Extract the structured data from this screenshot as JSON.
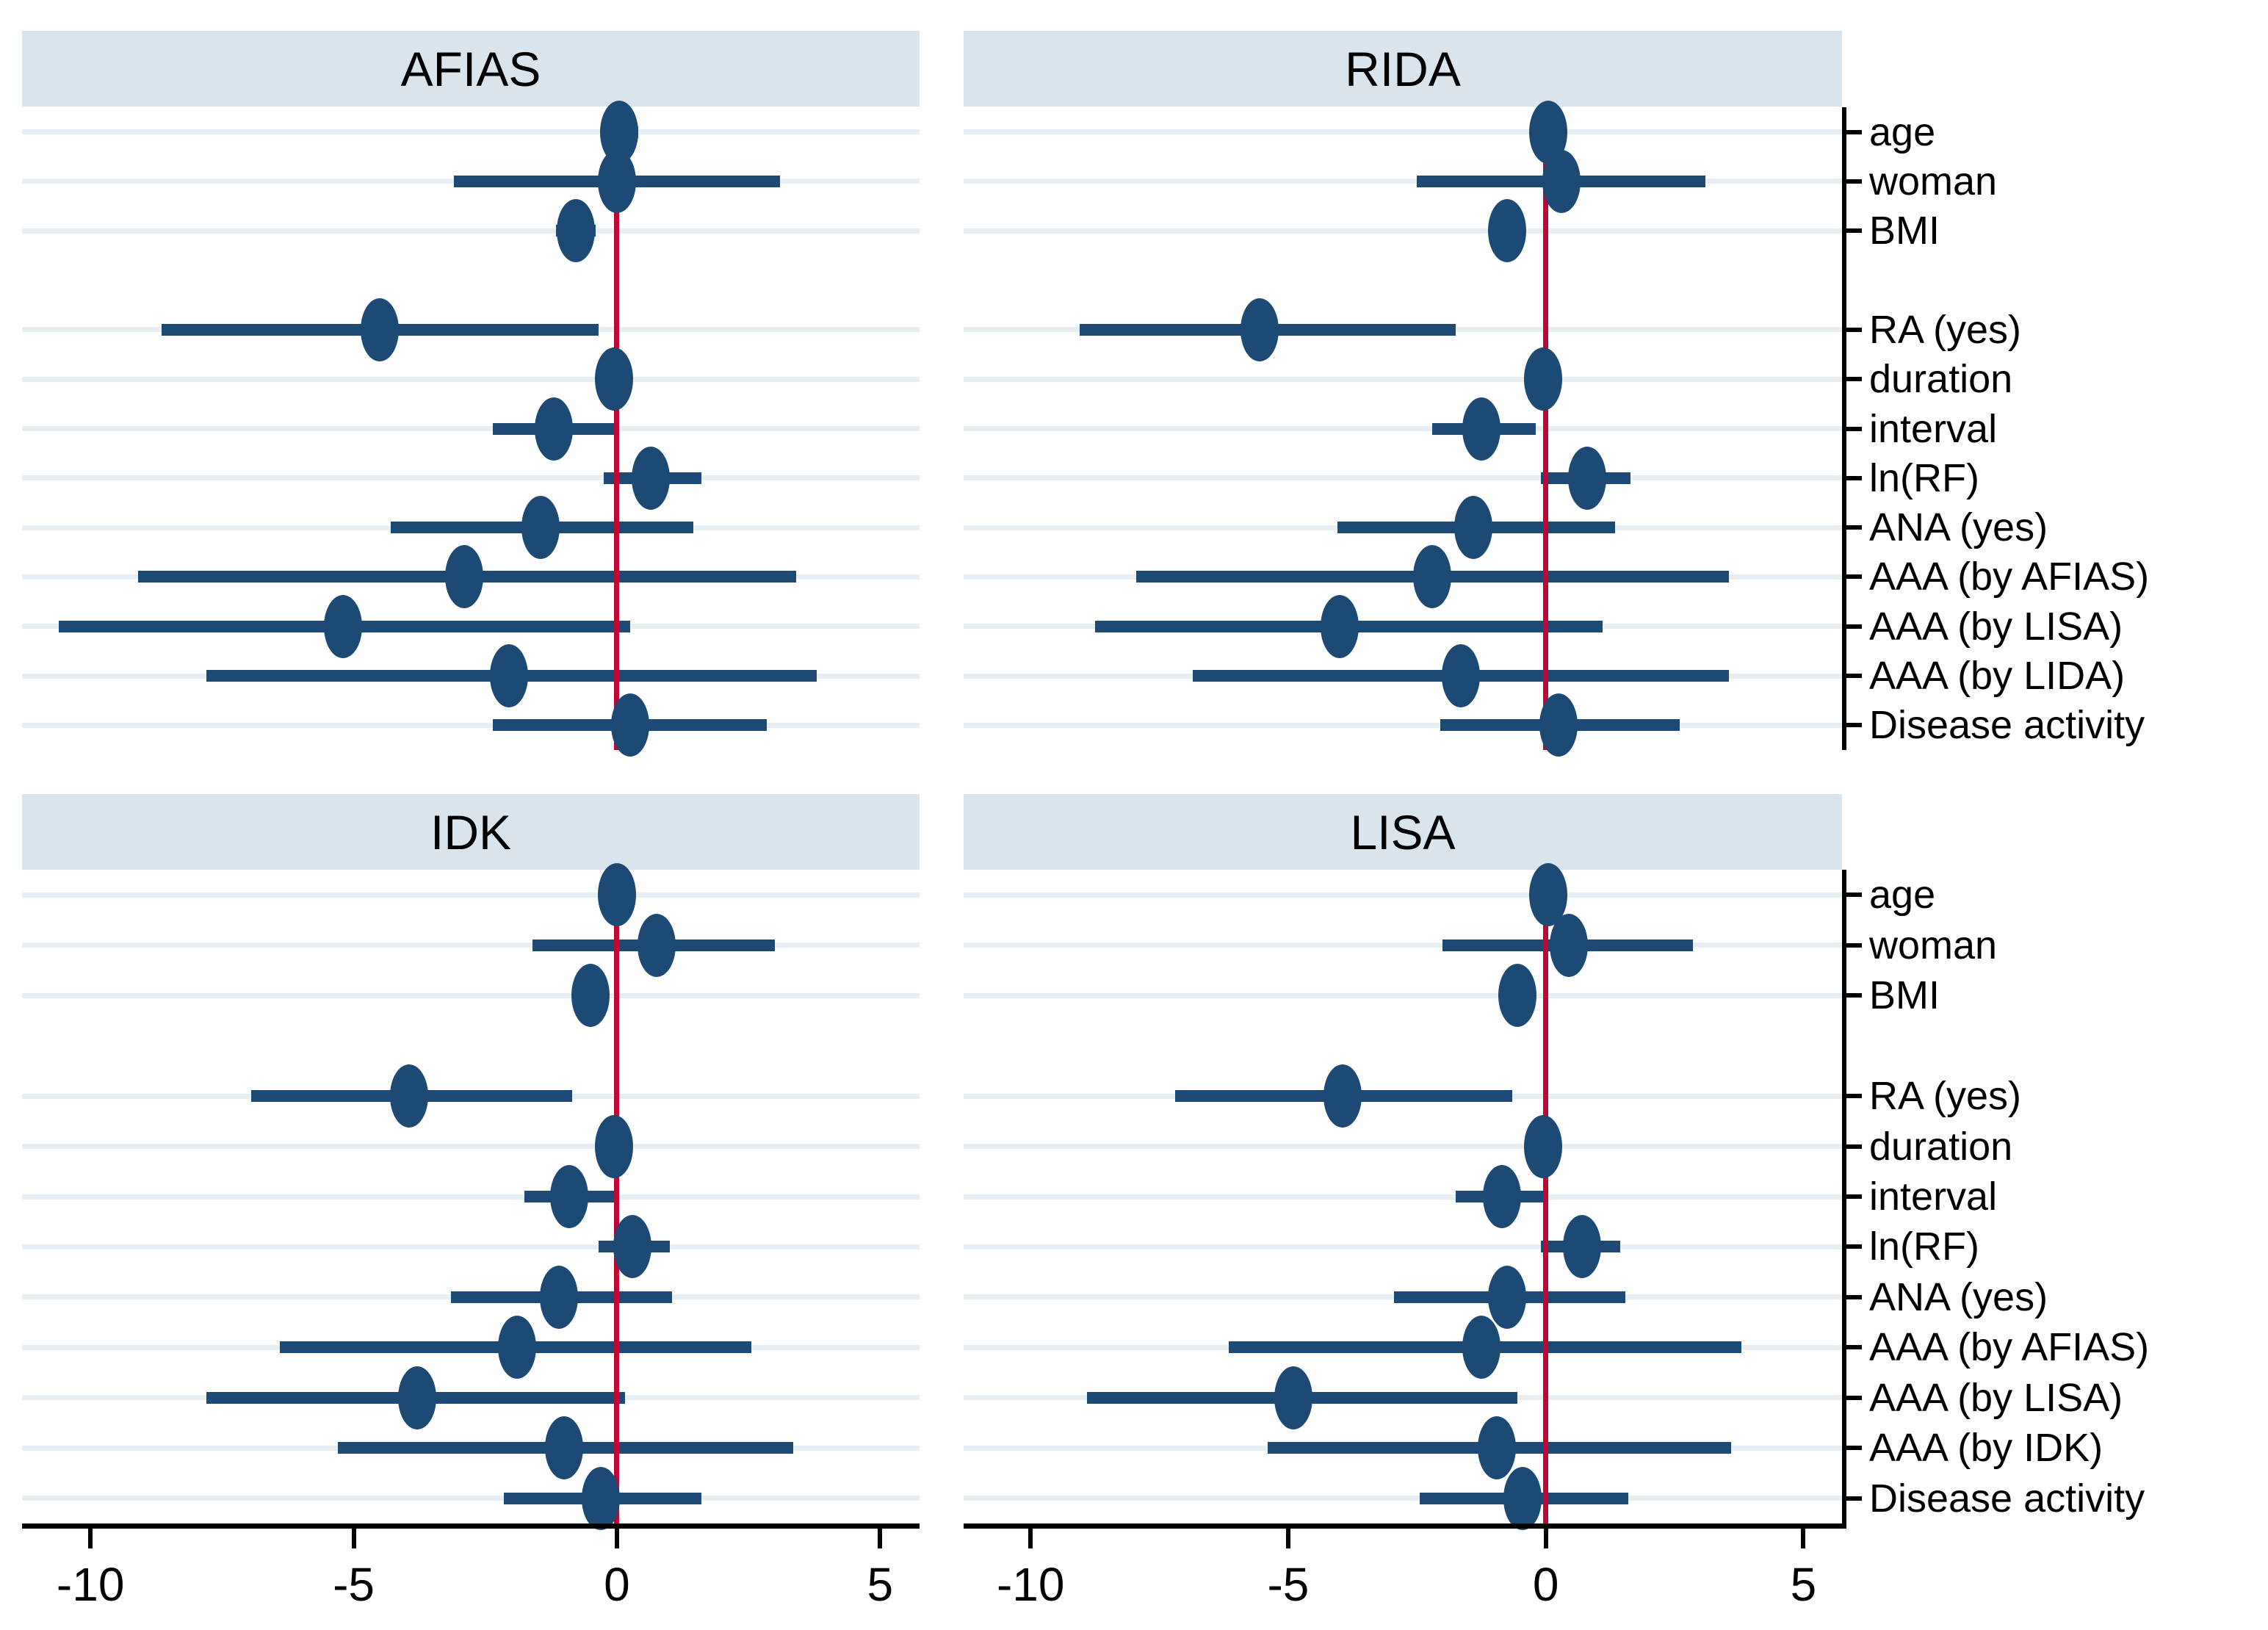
{
  "figure": {
    "colors": {
      "background": "#ffffff",
      "header_bg": "#d9e4ec",
      "gridline": "#e7eff2",
      "marker": "#1c4a74",
      "ci_bar": "#1c4a74",
      "zero_line": "#c10534",
      "axis": "#000000",
      "text": "#000000"
    }
  },
  "chart_data": {
    "type": "forest",
    "description": "Coefficient (forest) plot with four panels of point estimates and confidence intervals, red reference line at 0, variable labels on right spine",
    "x_axis": {
      "range": [
        -11.3,
        5.75
      ],
      "tick_values": [
        -10,
        -5,
        0,
        5
      ],
      "tick_labels": [
        "-10",
        "-5",
        "0",
        "5"
      ],
      "zero_reference_line": 0,
      "grid": "horizontal-row-lines"
    },
    "legend": "none",
    "bands": [
      {
        "row_labels": [
          "age",
          "woman",
          "BMI",
          "",
          "RA (yes)",
          "duration",
          "interval",
          "ln(RF)",
          "ANA (yes)",
          "AAA (by AFIAS)",
          "AAA (by LISA)",
          "AAA (by LIDA)",
          "Disease activity"
        ],
        "panels": [
          {
            "title": "AFIAS",
            "estimates": [
              {
                "est": 0.05,
                "lo": -0.3,
                "hi": 0.4
              },
              {
                "est": 0.0,
                "lo": -3.1,
                "hi": 3.1
              },
              {
                "est": -0.78,
                "lo": -1.15,
                "hi": -0.4
              },
              null,
              {
                "est": -4.5,
                "lo": -8.65,
                "hi": -0.35
              },
              {
                "est": -0.05,
                "lo": -0.4,
                "hi": 0.3
              },
              {
                "est": -1.2,
                "lo": -2.35,
                "hi": 0.0
              },
              {
                "est": 0.65,
                "lo": -0.25,
                "hi": 1.6
              },
              {
                "est": -1.45,
                "lo": -4.3,
                "hi": 1.45
              },
              {
                "est": -2.9,
                "lo": -9.1,
                "hi": 3.4
              },
              {
                "est": -5.2,
                "lo": -10.6,
                "hi": 0.25
              },
              {
                "est": -2.05,
                "lo": -7.8,
                "hi": 3.8
              },
              {
                "est": 0.25,
                "lo": -2.35,
                "hi": 2.85
              }
            ]
          },
          {
            "title": "RIDA",
            "estimates": [
              {
                "est": 0.05,
                "lo": -0.3,
                "hi": 0.4
              },
              {
                "est": 0.3,
                "lo": -2.5,
                "hi": 3.1
              },
              {
                "est": -0.75,
                "lo": -1.1,
                "hi": -0.4
              },
              null,
              {
                "est": -5.55,
                "lo": -9.05,
                "hi": -1.75
              },
              {
                "est": -0.05,
                "lo": -0.4,
                "hi": 0.3
              },
              {
                "est": -1.25,
                "lo": -2.2,
                "hi": -0.2
              },
              {
                "est": 0.8,
                "lo": -0.1,
                "hi": 1.65
              },
              {
                "est": -1.4,
                "lo": -4.05,
                "hi": 1.35
              },
              {
                "est": -2.2,
                "lo": -7.95,
                "hi": 3.55
              },
              {
                "est": -4.0,
                "lo": -8.75,
                "hi": 1.1
              },
              {
                "est": -1.65,
                "lo": -6.85,
                "hi": 3.55
              },
              {
                "est": 0.25,
                "lo": -2.05,
                "hi": 2.6
              }
            ]
          }
        ]
      },
      {
        "row_labels": [
          "age",
          "woman",
          "BMI",
          "",
          "RA (yes)",
          "duration",
          "interval",
          "ln(RF)",
          "ANA (yes)",
          "AAA (by AFIAS)",
          "AAA (by LISA)",
          "AAA (by IDK)",
          "Disease activity"
        ],
        "panels": [
          {
            "title": "IDK",
            "estimates": [
              {
                "est": 0.0,
                "lo": -0.35,
                "hi": 0.35
              },
              {
                "est": 0.75,
                "lo": -1.6,
                "hi": 3.0
              },
              {
                "est": -0.5,
                "lo": -0.85,
                "hi": -0.15
              },
              null,
              {
                "est": -3.95,
                "lo": -6.95,
                "hi": -0.85
              },
              {
                "est": -0.05,
                "lo": -0.4,
                "hi": 0.3
              },
              {
                "est": -0.9,
                "lo": -1.75,
                "hi": -0.05
              },
              {
                "est": 0.3,
                "lo": -0.35,
                "hi": 1.0
              },
              {
                "est": -1.1,
                "lo": -3.15,
                "hi": 1.05
              },
              {
                "est": -1.9,
                "lo": -6.4,
                "hi": 2.55
              },
              {
                "est": -3.8,
                "lo": -7.8,
                "hi": 0.15
              },
              {
                "est": -1.0,
                "lo": -5.3,
                "hi": 3.35
              },
              {
                "est": -0.3,
                "lo": -2.15,
                "hi": 1.6
              }
            ]
          },
          {
            "title": "LISA",
            "estimates": [
              {
                "est": 0.05,
                "lo": -0.3,
                "hi": 0.4
              },
              {
                "est": 0.45,
                "lo": -2.0,
                "hi": 2.85
              },
              {
                "est": -0.55,
                "lo": -0.9,
                "hi": -0.2
              },
              null,
              {
                "est": -3.95,
                "lo": -7.2,
                "hi": -0.65
              },
              {
                "est": -0.05,
                "lo": -0.4,
                "hi": 0.3
              },
              {
                "est": -0.85,
                "lo": -1.75,
                "hi": 0.0
              },
              {
                "est": 0.7,
                "lo": -0.1,
                "hi": 1.45
              },
              {
                "est": -0.75,
                "lo": -2.95,
                "hi": 1.55
              },
              {
                "est": -1.25,
                "lo": -6.15,
                "hi": 3.8
              },
              {
                "est": -4.9,
                "lo": -8.9,
                "hi": -0.55
              },
              {
                "est": -0.95,
                "lo": -5.4,
                "hi": 3.6
              },
              {
                "est": -0.45,
                "lo": -2.45,
                "hi": 1.6
              }
            ]
          }
        ]
      }
    ]
  }
}
